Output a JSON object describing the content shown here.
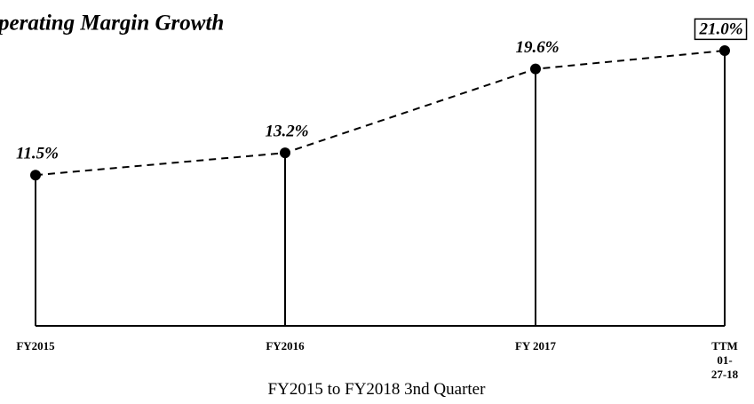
{
  "chart_data": {
    "type": "lollipop-line",
    "title": "Operating Margin Growth",
    "x_label": "FY2015 to FY2018 3nd Quarter",
    "categories": [
      "FY2015",
      "FY2016",
      "FY 2017",
      "TTM\n01-27-18"
    ],
    "values": [
      11.5,
      13.2,
      19.6,
      21.0
    ],
    "value_labels": [
      "11.5%",
      "13.2%",
      "19.6%",
      "21.0%"
    ],
    "ylim": [
      0,
      21
    ],
    "color": "#000000"
  }
}
